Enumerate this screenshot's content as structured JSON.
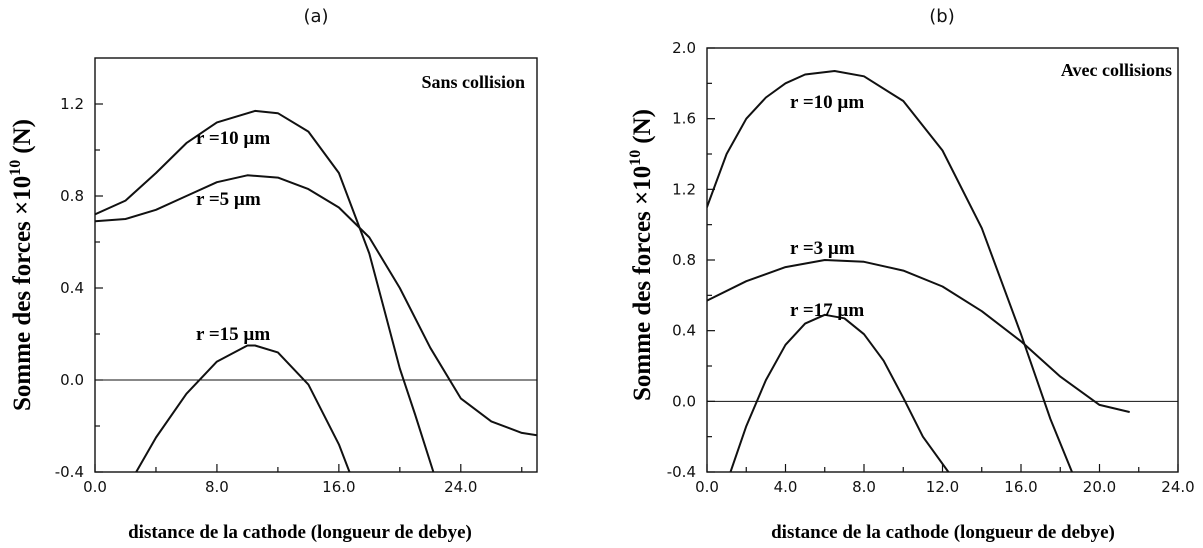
{
  "chart_data": [
    {
      "type": "line",
      "panel_label": "(a)",
      "annotation": "Sans collision",
      "xlabel": "distance de la cathode (longueur de debye)",
      "ylabel_main": "Somme des forces ×10",
      "ylabel_exp": "10",
      "ylabel_unit": "(N)",
      "xlim": [
        0,
        29
      ],
      "ylim": [
        -0.4,
        1.4
      ],
      "x_ticks": [
        0,
        4,
        8,
        12,
        16,
        20,
        24,
        28
      ],
      "x_tick_labels": [
        "0.0",
        "",
        "8.0",
        "",
        "16.0",
        "",
        "24.0",
        ""
      ],
      "y_ticks": [
        -0.4,
        -0.2,
        0.0,
        0.2,
        0.4,
        0.6,
        0.8,
        1.0,
        1.2
      ],
      "y_tick_labels": [
        "-0.4",
        "",
        "0.0",
        "",
        "0.4",
        "",
        "0.8",
        "",
        "1.2"
      ],
      "series": [
        {
          "name": "r =10 µm",
          "x": [
            0,
            2,
            4,
            6,
            8,
            10.5,
            12,
            14,
            16,
            18,
            19,
            20,
            21,
            22.2
          ],
          "y": [
            0.72,
            0.78,
            0.9,
            1.03,
            1.12,
            1.17,
            1.16,
            1.08,
            0.9,
            0.55,
            0.3,
            0.05,
            -0.15,
            -0.4
          ]
        },
        {
          "name": "r =5 µm",
          "x": [
            0,
            2,
            4,
            6,
            8,
            10,
            12,
            14,
            16,
            18,
            20,
            22,
            24,
            26,
            28,
            29
          ],
          "y": [
            0.69,
            0.7,
            0.74,
            0.8,
            0.86,
            0.89,
            0.88,
            0.83,
            0.75,
            0.62,
            0.4,
            0.14,
            -0.08,
            -0.18,
            -0.23,
            -0.24
          ]
        },
        {
          "name": "r =15 µm",
          "x": [
            2.7,
            4,
            6,
            8,
            10,
            10.5,
            12,
            14,
            16,
            16.7
          ],
          "y": [
            -0.4,
            -0.25,
            -0.06,
            0.08,
            0.15,
            0.15,
            0.12,
            -0.02,
            -0.28,
            -0.4
          ]
        }
      ]
    },
    {
      "type": "line",
      "panel_label": "(b)",
      "annotation": "Avec collisions",
      "xlabel": "distance de la cathode (longueur de debye)",
      "ylabel_main": "Somme des forces ×10",
      "ylabel_exp": "10",
      "ylabel_unit": "(N)",
      "xlim": [
        0,
        24
      ],
      "ylim": [
        -0.4,
        2.0
      ],
      "x_ticks": [
        0,
        2,
        4,
        6,
        8,
        10,
        12,
        14,
        16,
        18,
        20,
        22,
        24
      ],
      "x_tick_labels": [
        "0.0",
        "",
        "4.0",
        "",
        "8.0",
        "",
        "12.0",
        "",
        "16.0",
        "",
        "20.0",
        "",
        "24.0"
      ],
      "y_ticks": [
        -0.4,
        -0.2,
        0.0,
        0.2,
        0.4,
        0.6,
        0.8,
        1.0,
        1.2,
        1.4,
        1.6,
        1.8,
        2.0
      ],
      "y_tick_labels": [
        "-0.4",
        "",
        "0.0",
        "",
        "0.4",
        "",
        "0.8",
        "",
        "1.2",
        "",
        "1.6",
        "",
        "2.0"
      ],
      "series": [
        {
          "name": "r =10 µm",
          "x": [
            0,
            1,
            2,
            3,
            4,
            5,
            6.5,
            8,
            10,
            12,
            14,
            16,
            17.5,
            18.6
          ],
          "y": [
            1.1,
            1.4,
            1.6,
            1.72,
            1.8,
            1.85,
            1.87,
            1.84,
            1.7,
            1.42,
            0.98,
            0.38,
            -0.1,
            -0.4
          ]
        },
        {
          "name": "r =3 µm",
          "x": [
            0,
            2,
            4,
            6,
            8,
            10,
            12,
            14,
            16,
            18,
            20,
            21.5
          ],
          "y": [
            0.57,
            0.68,
            0.76,
            0.8,
            0.79,
            0.74,
            0.65,
            0.51,
            0.34,
            0.14,
            -0.02,
            -0.06
          ]
        },
        {
          "name": "r =17 µm",
          "x": [
            1.2,
            2,
            3,
            4,
            5,
            6,
            7,
            8,
            9,
            10,
            11,
            12.3
          ],
          "y": [
            -0.4,
            -0.14,
            0.12,
            0.32,
            0.44,
            0.49,
            0.47,
            0.38,
            0.23,
            0.02,
            -0.2,
            -0.4
          ]
        }
      ]
    }
  ]
}
